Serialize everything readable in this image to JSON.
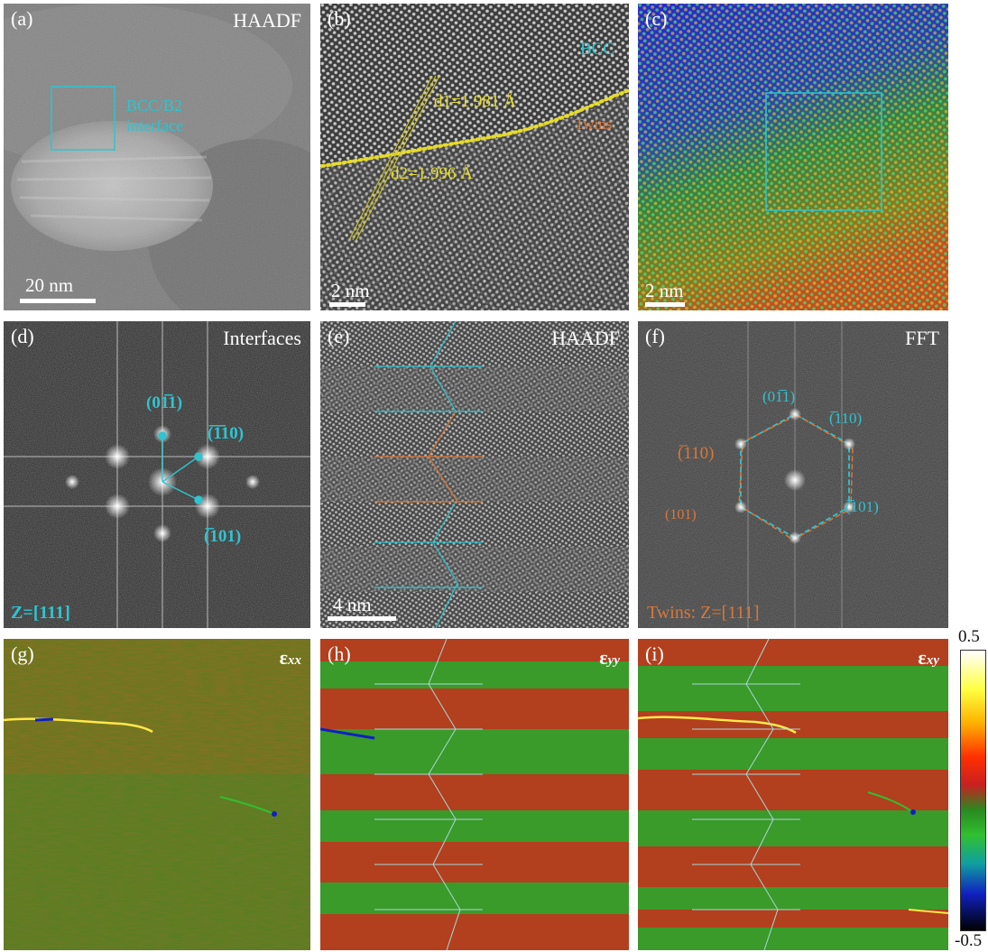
{
  "figure": {
    "panels": {
      "a": {
        "label": "(a)",
        "title": "HAADF",
        "annotation_line1": "BCC/B2",
        "annotation_line2": "interface",
        "scale_bar": "20 nm"
      },
      "b": {
        "label": "(b)",
        "annotation_bcc": "BCC",
        "annotation_twins": "Twins",
        "d1": "d1=1.981 Å",
        "d2": "d2=1.996 Å",
        "scale_bar": "2 nm"
      },
      "c": {
        "label": "(c)",
        "scale_bar": "2 nm"
      },
      "d": {
        "label": "(d)",
        "title": "Interfaces",
        "spot1": "(01̅1)",
        "spot2": "(̅1̅10)",
        "spot3": "(̅101)",
        "zone": "Z=[111]"
      },
      "e": {
        "label": "(e)",
        "title": "HAADF",
        "scale_bar": "4 nm"
      },
      "f": {
        "label": "(f)",
        "title": "FFT",
        "cyan1": "(01̅1)",
        "cyan2": "(̅110)",
        "cyan3": "(̅101)",
        "orange1": "(̅110)",
        "orange2": "(101)",
        "zone": "Twins: Z=[111]"
      },
      "g": {
        "label": "(g)",
        "symbol": "ε",
        "subscript": "xx"
      },
      "h": {
        "label": "(h)",
        "symbol": "ε",
        "subscript": "yy"
      },
      "i": {
        "label": "(i)",
        "symbol": "ε",
        "subscript": "xy"
      }
    },
    "colorbar": {
      "max": "0.5",
      "min": "-0.5"
    },
    "colors": {
      "cyan": "#2fc4cf",
      "orange": "#d8783a",
      "yellow": "#e6dc2a"
    }
  }
}
